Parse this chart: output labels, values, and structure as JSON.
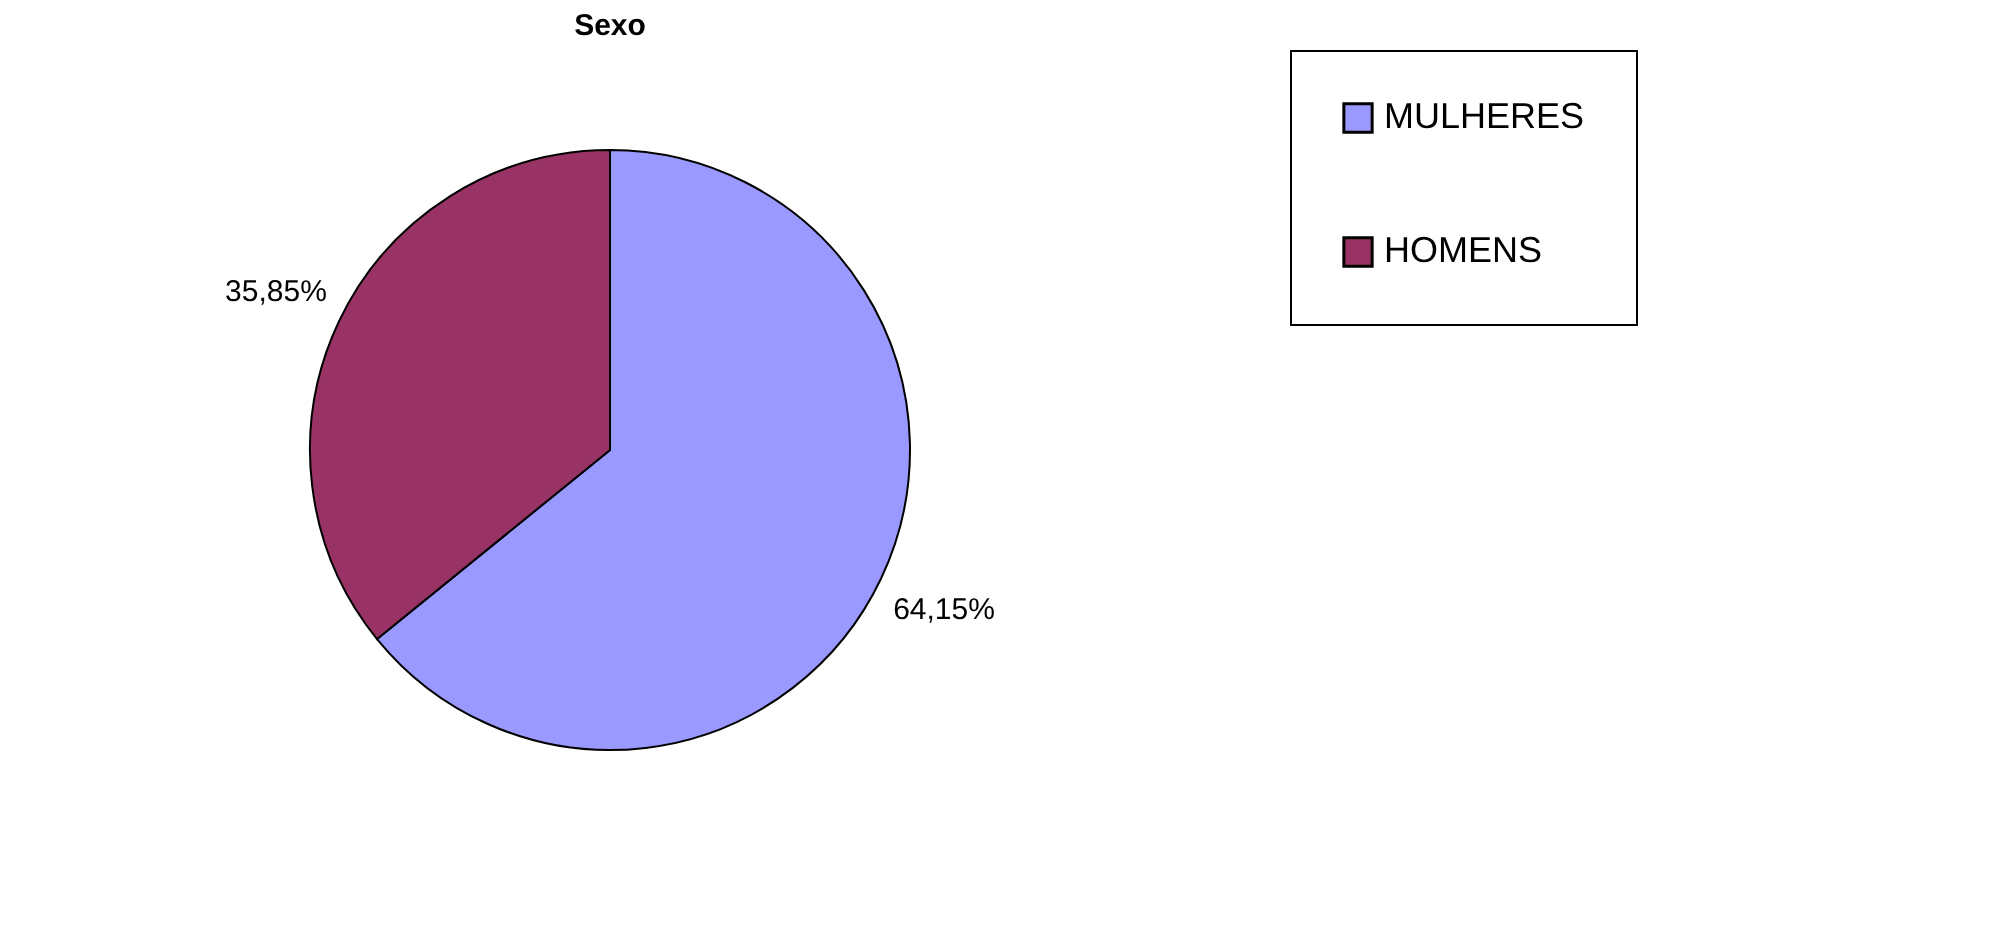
{
  "chart_data": {
    "type": "pie",
    "title": "Sexo",
    "categories": [
      "MULHERES",
      "HOMENS"
    ],
    "values": [
      64.15,
      35.85
    ],
    "colors": [
      "#9999ff",
      "#993366"
    ],
    "value_labels": [
      "64,15%",
      "35,85%"
    ],
    "legend": "right"
  }
}
